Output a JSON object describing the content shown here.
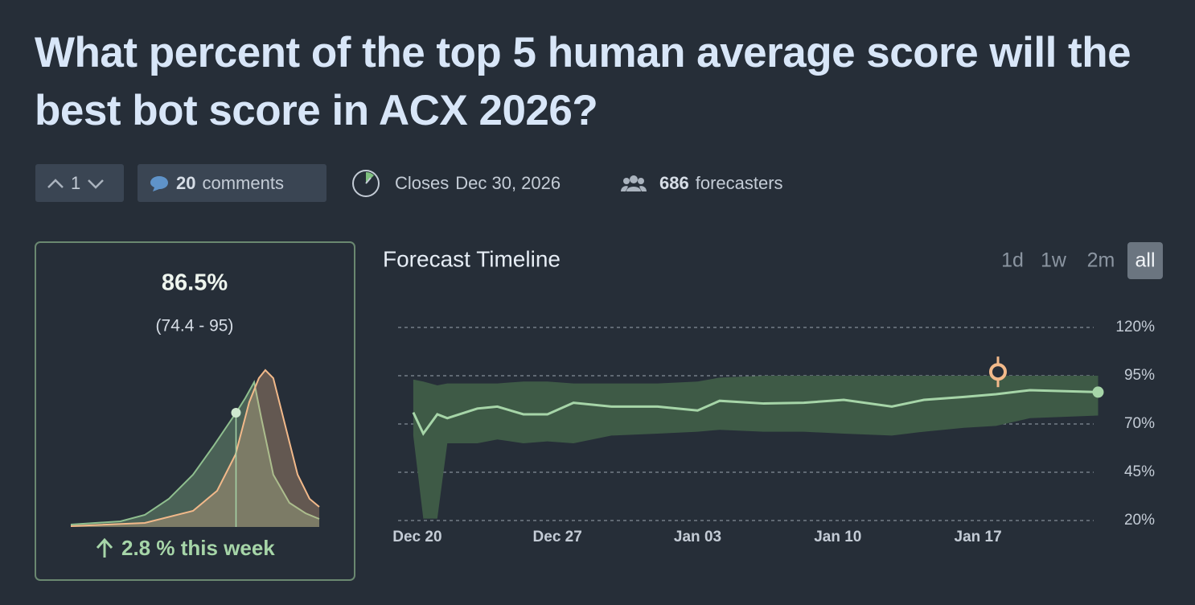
{
  "header": {
    "title": "What percent of the top 5 human average score will the best bot score in ACX 2026?"
  },
  "toolbar": {
    "votes": "1",
    "comments_count": "20",
    "comments_label": "comments",
    "closes_label": "Closes",
    "closes_date": "Dec 30, 2026",
    "forecasters_count": "686",
    "forecasters_label": "forecasters"
  },
  "summary": {
    "value": "86.5%",
    "range": "(74.4 - 95)",
    "change": "2.8 % this week",
    "distribution": {
      "type": "line",
      "xlim": [
        20,
        120
      ],
      "ylim": [
        0,
        1
      ],
      "median": 86.5,
      "community": {
        "color": "#8fbf8f",
        "x": [
          20,
          40,
          49.8,
          59.5,
          69.2,
          77.3,
          86.3,
          90.2,
          93.8,
          96.7,
          101.5,
          108,
          114.5,
          120
        ],
        "values": [
          0.015,
          0.035,
          0.075,
          0.175,
          0.325,
          0.5,
          0.705,
          0.8,
          0.9,
          0.675,
          0.325,
          0.15,
          0.085,
          0.05
        ]
      },
      "user": {
        "color": "#f2b98a",
        "x": [
          20,
          49.8,
          69.2,
          78.9,
          86.3,
          91.8,
          95.7,
          98.3,
          101.5,
          106.4,
          111.3,
          116.1,
          120
        ],
        "values": [
          0.005,
          0.025,
          0.1,
          0.225,
          0.45,
          0.775,
          0.925,
          0.975,
          0.925,
          0.625,
          0.325,
          0.175,
          0.125
        ]
      }
    }
  },
  "timeline": {
    "type": "area",
    "title": "Forecast Timeline",
    "ranges": [
      "1d",
      "1w",
      "2m",
      "all"
    ],
    "active_range": "all",
    "x": [
      -0.2,
      0.3,
      1,
      1.5,
      3,
      4,
      5.3,
      6.5,
      7.8,
      9.7,
      12,
      14,
      15.1,
      17.3,
      19.3,
      21.3,
      23.7,
      25.3,
      27.3,
      28.9,
      30.6,
      34
    ],
    "median": [
      76,
      65,
      75,
      73,
      78,
      79,
      75,
      75,
      81,
      79,
      79,
      77,
      82,
      80.6,
      81,
      82.5,
      79,
      82.5,
      84,
      85.4,
      87.5,
      86.5
    ],
    "lower": [
      64,
      21,
      21,
      60,
      60,
      62,
      60,
      61,
      60,
      64,
      65,
      66,
      67,
      66,
      66,
      65,
      64,
      66,
      68,
      69,
      73,
      74.4
    ],
    "upper": [
      93,
      92,
      90,
      91,
      91,
      91,
      92,
      92,
      91,
      91,
      91,
      92,
      94,
      95,
      95,
      95,
      95,
      95,
      95,
      95,
      95,
      95
    ],
    "band_color": "#3e5a46",
    "line_color": "#a6d5a8",
    "user_color": "#f2b98a",
    "user_forecast": {
      "x": 29,
      "value": 97
    },
    "xlim": [
      -1,
      34
    ],
    "xticks": [
      {
        "value": 0,
        "label": "Dec 20"
      },
      {
        "value": 7,
        "label": "Dec 27"
      },
      {
        "value": 14,
        "label": "Jan 03"
      },
      {
        "value": 21,
        "label": "Jan 10"
      },
      {
        "value": 28,
        "label": "Jan 17"
      }
    ],
    "ylim": [
      20,
      120
    ],
    "yticks": [
      {
        "value": 20,
        "label": "20%"
      },
      {
        "value": 45,
        "label": "45%"
      },
      {
        "value": 70,
        "label": "70%"
      },
      {
        "value": 95,
        "label": "95%"
      },
      {
        "value": 120,
        "label": "120%"
      }
    ],
    "grid": true
  }
}
